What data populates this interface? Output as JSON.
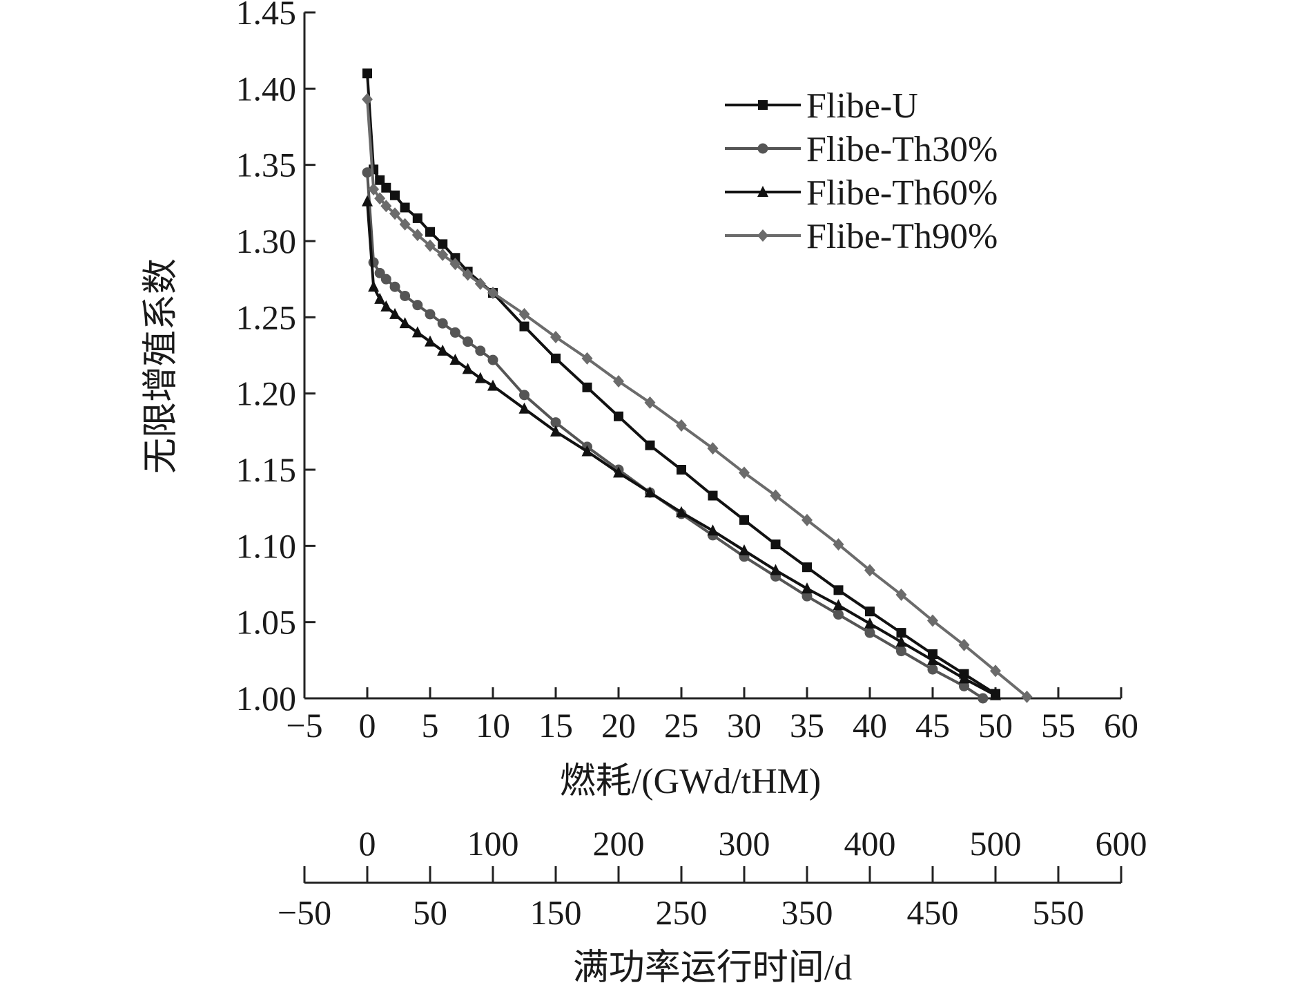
{
  "chart_data": {
    "type": "line",
    "title": "",
    "ylabel": "无限增殖系数",
    "xlabel": "燃耗/(GWd/tHM)",
    "xlim": [
      -5,
      60
    ],
    "ylim": [
      1.0,
      1.45
    ],
    "x_ticks": [
      "−5",
      "0",
      "5",
      "10",
      "15",
      "20",
      "25",
      "30",
      "35",
      "40",
      "45",
      "50",
      "55",
      "60"
    ],
    "y_ticks": [
      "1.00",
      "1.05",
      "1.10",
      "1.15",
      "1.20",
      "1.25",
      "1.30",
      "1.35",
      "1.40",
      "1.45"
    ],
    "secondary_axis": {
      "label": "满功率运行时间/d",
      "range": [
        -50,
        600
      ],
      "upper_ticks": [
        {
          "v": 0,
          "t": "0"
        },
        {
          "v": 100,
          "t": "100"
        },
        {
          "v": 200,
          "t": "200"
        },
        {
          "v": 300,
          "t": "300"
        },
        {
          "v": 400,
          "t": "400"
        },
        {
          "v": 500,
          "t": "500"
        },
        {
          "v": 600,
          "t": "600"
        }
      ],
      "lower_ticks": [
        {
          "v": -50,
          "t": "−50"
        },
        {
          "v": 50,
          "t": "50"
        },
        {
          "v": 150,
          "t": "150"
        },
        {
          "v": 250,
          "t": "250"
        },
        {
          "v": 350,
          "t": "350"
        },
        {
          "v": 450,
          "t": "450"
        },
        {
          "v": 550,
          "t": "550"
        }
      ]
    },
    "legend_position": "top-right",
    "grid": false,
    "series": [
      {
        "name": "Flibe-U",
        "marker": "square",
        "color": "#111111",
        "x": [
          0,
          0.5,
          1,
          1.5,
          2.2,
          3,
          4,
          5,
          6,
          7,
          8,
          10,
          12.5,
          15,
          17.5,
          20,
          22.5,
          25,
          27.5,
          30,
          32.5,
          35,
          37.5,
          40,
          42.5,
          45,
          47.5,
          50
        ],
        "y": [
          1.41,
          1.347,
          1.34,
          1.335,
          1.33,
          1.322,
          1.315,
          1.306,
          1.298,
          1.289,
          1.28,
          1.266,
          1.244,
          1.223,
          1.204,
          1.185,
          1.166,
          1.15,
          1.133,
          1.117,
          1.101,
          1.086,
          1.071,
          1.057,
          1.043,
          1.029,
          1.016,
          1.003
        ]
      },
      {
        "name": "Flibe-Th30%",
        "marker": "circle",
        "color": "#555555",
        "x": [
          0,
          0.5,
          1,
          1.5,
          2.2,
          3,
          4,
          5,
          6,
          7,
          8,
          9,
          10,
          12.5,
          15,
          17.5,
          20,
          22.5,
          25,
          27.5,
          30,
          32.5,
          35,
          37.5,
          40,
          42.5,
          45,
          47.5,
          49
        ],
        "y": [
          1.345,
          1.286,
          1.279,
          1.275,
          1.27,
          1.264,
          1.258,
          1.252,
          1.246,
          1.24,
          1.234,
          1.228,
          1.222,
          1.199,
          1.181,
          1.165,
          1.15,
          1.135,
          1.121,
          1.107,
          1.093,
          1.08,
          1.067,
          1.055,
          1.043,
          1.031,
          1.019,
          1.008,
          1.0
        ]
      },
      {
        "name": "Flibe-Th60%",
        "marker": "triangle",
        "color": "#111111",
        "x": [
          0,
          0.5,
          1,
          1.5,
          2.2,
          3,
          4,
          5,
          6,
          7,
          8,
          9,
          10,
          12.5,
          15,
          17.5,
          20,
          22.5,
          25,
          27.5,
          30,
          32.5,
          35,
          37.5,
          40,
          42.5,
          45,
          47.5,
          50
        ],
        "y": [
          1.326,
          1.27,
          1.262,
          1.257,
          1.252,
          1.246,
          1.24,
          1.234,
          1.228,
          1.222,
          1.216,
          1.21,
          1.205,
          1.19,
          1.175,
          1.162,
          1.148,
          1.135,
          1.122,
          1.11,
          1.097,
          1.084,
          1.072,
          1.061,
          1.049,
          1.037,
          1.025,
          1.013,
          1.002
        ]
      },
      {
        "name": "Flibe-Th90%",
        "marker": "diamond",
        "color": "#6b6b6b",
        "x": [
          0,
          0.5,
          1,
          1.5,
          2.2,
          3,
          4,
          5,
          6,
          7,
          8,
          9,
          10,
          12.5,
          15,
          17.5,
          20,
          22.5,
          25,
          27.5,
          30,
          32.5,
          35,
          37.5,
          40,
          42.5,
          45,
          47.5,
          50,
          52.5
        ],
        "y": [
          1.393,
          1.334,
          1.328,
          1.323,
          1.318,
          1.311,
          1.304,
          1.297,
          1.291,
          1.285,
          1.278,
          1.272,
          1.266,
          1.252,
          1.237,
          1.223,
          1.208,
          1.194,
          1.179,
          1.164,
          1.148,
          1.133,
          1.117,
          1.101,
          1.084,
          1.068,
          1.051,
          1.035,
          1.018,
          1.001
        ]
      }
    ]
  }
}
